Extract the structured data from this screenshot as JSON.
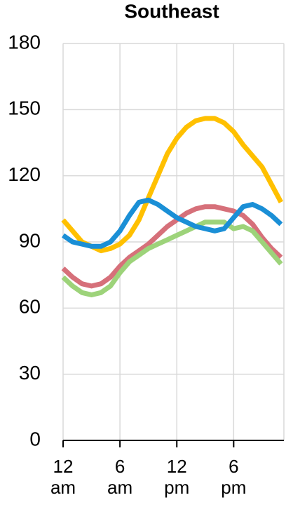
{
  "chart_data": {
    "type": "line",
    "title": "Southeast",
    "x": [
      0,
      1,
      2,
      3,
      4,
      5,
      6,
      7,
      8,
      9,
      10,
      11,
      12,
      13,
      14,
      15,
      16,
      17,
      18,
      19,
      20,
      21,
      22,
      23
    ],
    "xlim": [
      0,
      23.3
    ],
    "xticks": [
      {
        "value": 0,
        "label": "12 am"
      },
      {
        "value": 6,
        "label": "6 am"
      },
      {
        "value": 12,
        "label": "12 pm"
      },
      {
        "value": 18,
        "label": "6 pm"
      }
    ],
    "ylim": [
      0,
      180
    ],
    "yticks": [
      0,
      30,
      60,
      90,
      120,
      150,
      180
    ],
    "grid": true,
    "series": [
      {
        "color": "#ffc000",
        "values": [
          100,
          95,
          90,
          88,
          86,
          87,
          89,
          93,
          100,
          110,
          120,
          130,
          137,
          142,
          145,
          146,
          146,
          144,
          140,
          134,
          129,
          124,
          116,
          108
        ]
      },
      {
        "color": "#d6707a",
        "values": [
          78,
          74,
          71,
          70,
          71,
          74,
          79,
          83,
          86,
          89,
          93,
          97,
          100,
          103,
          105,
          106,
          106,
          105,
          104,
          102,
          98,
          92,
          87,
          83
        ]
      },
      {
        "color": "#9dd37a",
        "values": [
          74,
          70,
          67,
          66,
          67,
          70,
          76,
          81,
          84,
          87,
          89,
          91,
          93,
          95,
          97,
          99,
          99,
          99,
          96,
          97,
          95,
          90,
          85,
          80
        ]
      },
      {
        "color": "#1a8fd6",
        "values": [
          93,
          90,
          89,
          88,
          88,
          90,
          95,
          102,
          108,
          109,
          107,
          104,
          101,
          99,
          97,
          96,
          95,
          96,
          101,
          106,
          107,
          105,
          102,
          98
        ]
      }
    ]
  }
}
